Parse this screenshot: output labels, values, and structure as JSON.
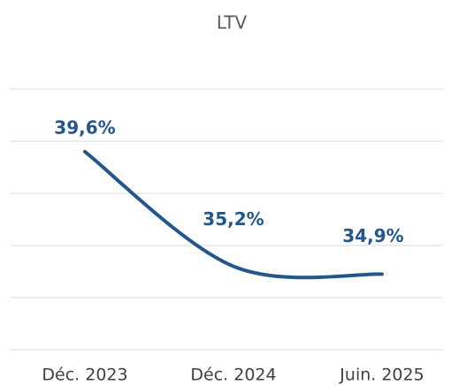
{
  "chart_data": {
    "type": "line",
    "title": "LTV",
    "categories": [
      "Déc. 2023",
      "Déc. 2024",
      "Juin. 2025"
    ],
    "series": [
      {
        "name": "LTV",
        "color": "#23578c",
        "values": [
          39.6,
          35.2,
          34.9
        ],
        "value_labels": [
          "39,6%",
          "35,2%",
          "34,9%"
        ]
      }
    ],
    "ylim": [
      32,
      42
    ],
    "yticks": [
      32,
      34,
      36,
      38,
      40,
      42
    ],
    "grid": true
  }
}
